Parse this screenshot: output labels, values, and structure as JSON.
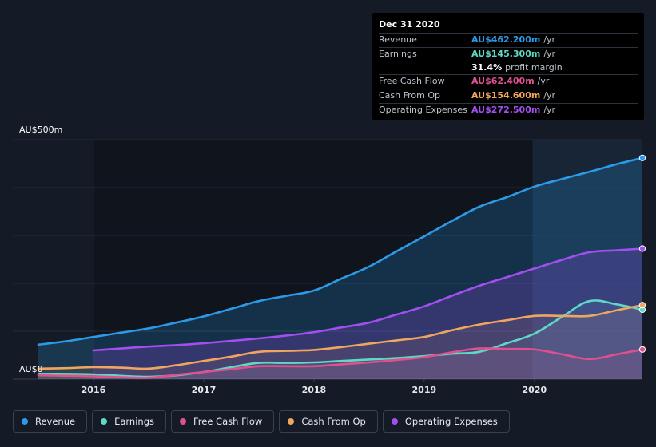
{
  "tooltip": {
    "date": "Dec 31 2020",
    "rows": [
      {
        "label": "Revenue",
        "value": "AU$462.200m",
        "unit": "/yr",
        "color": "#2d9ae8"
      },
      {
        "label": "Earnings",
        "value": "AU$145.300m",
        "unit": "/yr",
        "color": "#5fd9c3"
      },
      {
        "label": "",
        "value": "31.4%",
        "unit": "profit margin",
        "color": "#ffffff"
      },
      {
        "label": "Free Cash Flow",
        "value": "AU$62.400m",
        "unit": "/yr",
        "color": "#e0508f"
      },
      {
        "label": "Cash From Op",
        "value": "AU$154.600m",
        "unit": "/yr",
        "color": "#f0a65e"
      },
      {
        "label": "Operating Expenses",
        "value": "AU$272.500m",
        "unit": "/yr",
        "color": "#a34ff0"
      }
    ]
  },
  "chart_data": {
    "type": "area",
    "y_top_label": "AU$500m",
    "y_bottom_label": "AU$0",
    "ylim": [
      0,
      500
    ],
    "xlim": [
      2015.5,
      2020.98
    ],
    "x_ticks": [
      2016,
      2017,
      2018,
      2019,
      2020
    ],
    "x_tick_labels": [
      "2016",
      "2017",
      "2018",
      "2019",
      "2020"
    ],
    "grid": true,
    "legend_position": "bottom",
    "series": [
      {
        "name": "Revenue",
        "color": "#2d9ae8",
        "x": [
          2015.5,
          2015.75,
          2016.0,
          2016.25,
          2016.5,
          2016.75,
          2017.0,
          2017.25,
          2017.5,
          2017.75,
          2018.0,
          2018.25,
          2018.5,
          2018.75,
          2019.0,
          2019.25,
          2019.5,
          2019.75,
          2020.0,
          2020.25,
          2020.5,
          2020.75,
          2020.98
        ],
        "values": [
          72,
          79,
          88,
          97,
          106,
          118,
          131,
          147,
          163,
          174,
          185,
          210,
          235,
          267,
          298,
          330,
          360,
          380,
          402,
          418,
          433,
          449,
          462
        ]
      },
      {
        "name": "Earnings",
        "color": "#5fd9c3",
        "x": [
          2015.5,
          2015.75,
          2016.0,
          2016.25,
          2016.5,
          2016.75,
          2017.0,
          2017.25,
          2017.5,
          2017.75,
          2018.0,
          2018.25,
          2018.5,
          2018.75,
          2019.0,
          2019.25,
          2019.5,
          2019.75,
          2020.0,
          2020.25,
          2020.5,
          2020.75,
          2020.98
        ],
        "values": [
          11,
          11,
          10,
          7,
          5,
          8,
          15,
          25,
          34,
          34,
          35,
          38,
          41,
          44,
          48,
          53,
          57,
          75,
          95,
          130,
          163,
          156,
          145
        ]
      },
      {
        "name": "Free Cash Flow",
        "color": "#e0508f",
        "x": [
          2015.5,
          2015.75,
          2016.0,
          2016.25,
          2016.5,
          2016.75,
          2017.0,
          2017.25,
          2017.5,
          2017.75,
          2018.0,
          2018.25,
          2018.5,
          2018.75,
          2019.0,
          2019.25,
          2019.5,
          2019.75,
          2020.0,
          2020.25,
          2020.5,
          2020.75,
          2020.98
        ],
        "values": [
          8,
          7,
          6,
          4,
          3,
          9,
          15,
          21,
          27,
          27,
          27,
          31,
          35,
          40,
          46,
          56,
          64,
          63,
          62,
          52,
          42,
          52,
          62
        ]
      },
      {
        "name": "Cash From Op",
        "color": "#f0a65e",
        "x": [
          2015.5,
          2015.75,
          2016.0,
          2016.25,
          2016.5,
          2016.75,
          2017.0,
          2017.25,
          2017.5,
          2017.75,
          2018.0,
          2018.25,
          2018.5,
          2018.75,
          2019.0,
          2019.25,
          2019.5,
          2019.75,
          2020.0,
          2020.25,
          2020.5,
          2020.75,
          2020.98
        ],
        "values": [
          22,
          23,
          25,
          24,
          22,
          29,
          38,
          47,
          57,
          59,
          61,
          67,
          74,
          81,
          88,
          102,
          114,
          123,
          132,
          132,
          132,
          144,
          154.6
        ]
      },
      {
        "name": "Operating Expenses",
        "color": "#a34ff0",
        "x": [
          2016.0,
          2016.25,
          2016.5,
          2016.75,
          2017.0,
          2017.25,
          2017.5,
          2017.75,
          2018.0,
          2018.25,
          2018.5,
          2018.75,
          2019.0,
          2019.25,
          2019.5,
          2019.75,
          2020.0,
          2020.25,
          2020.5,
          2020.75,
          2020.98
        ],
        "values": [
          60,
          64,
          68,
          71,
          75,
          80,
          85,
          91,
          98,
          108,
          118,
          135,
          152,
          174,
          195,
          213,
          231,
          249,
          265,
          269,
          272.5
        ]
      }
    ]
  }
}
